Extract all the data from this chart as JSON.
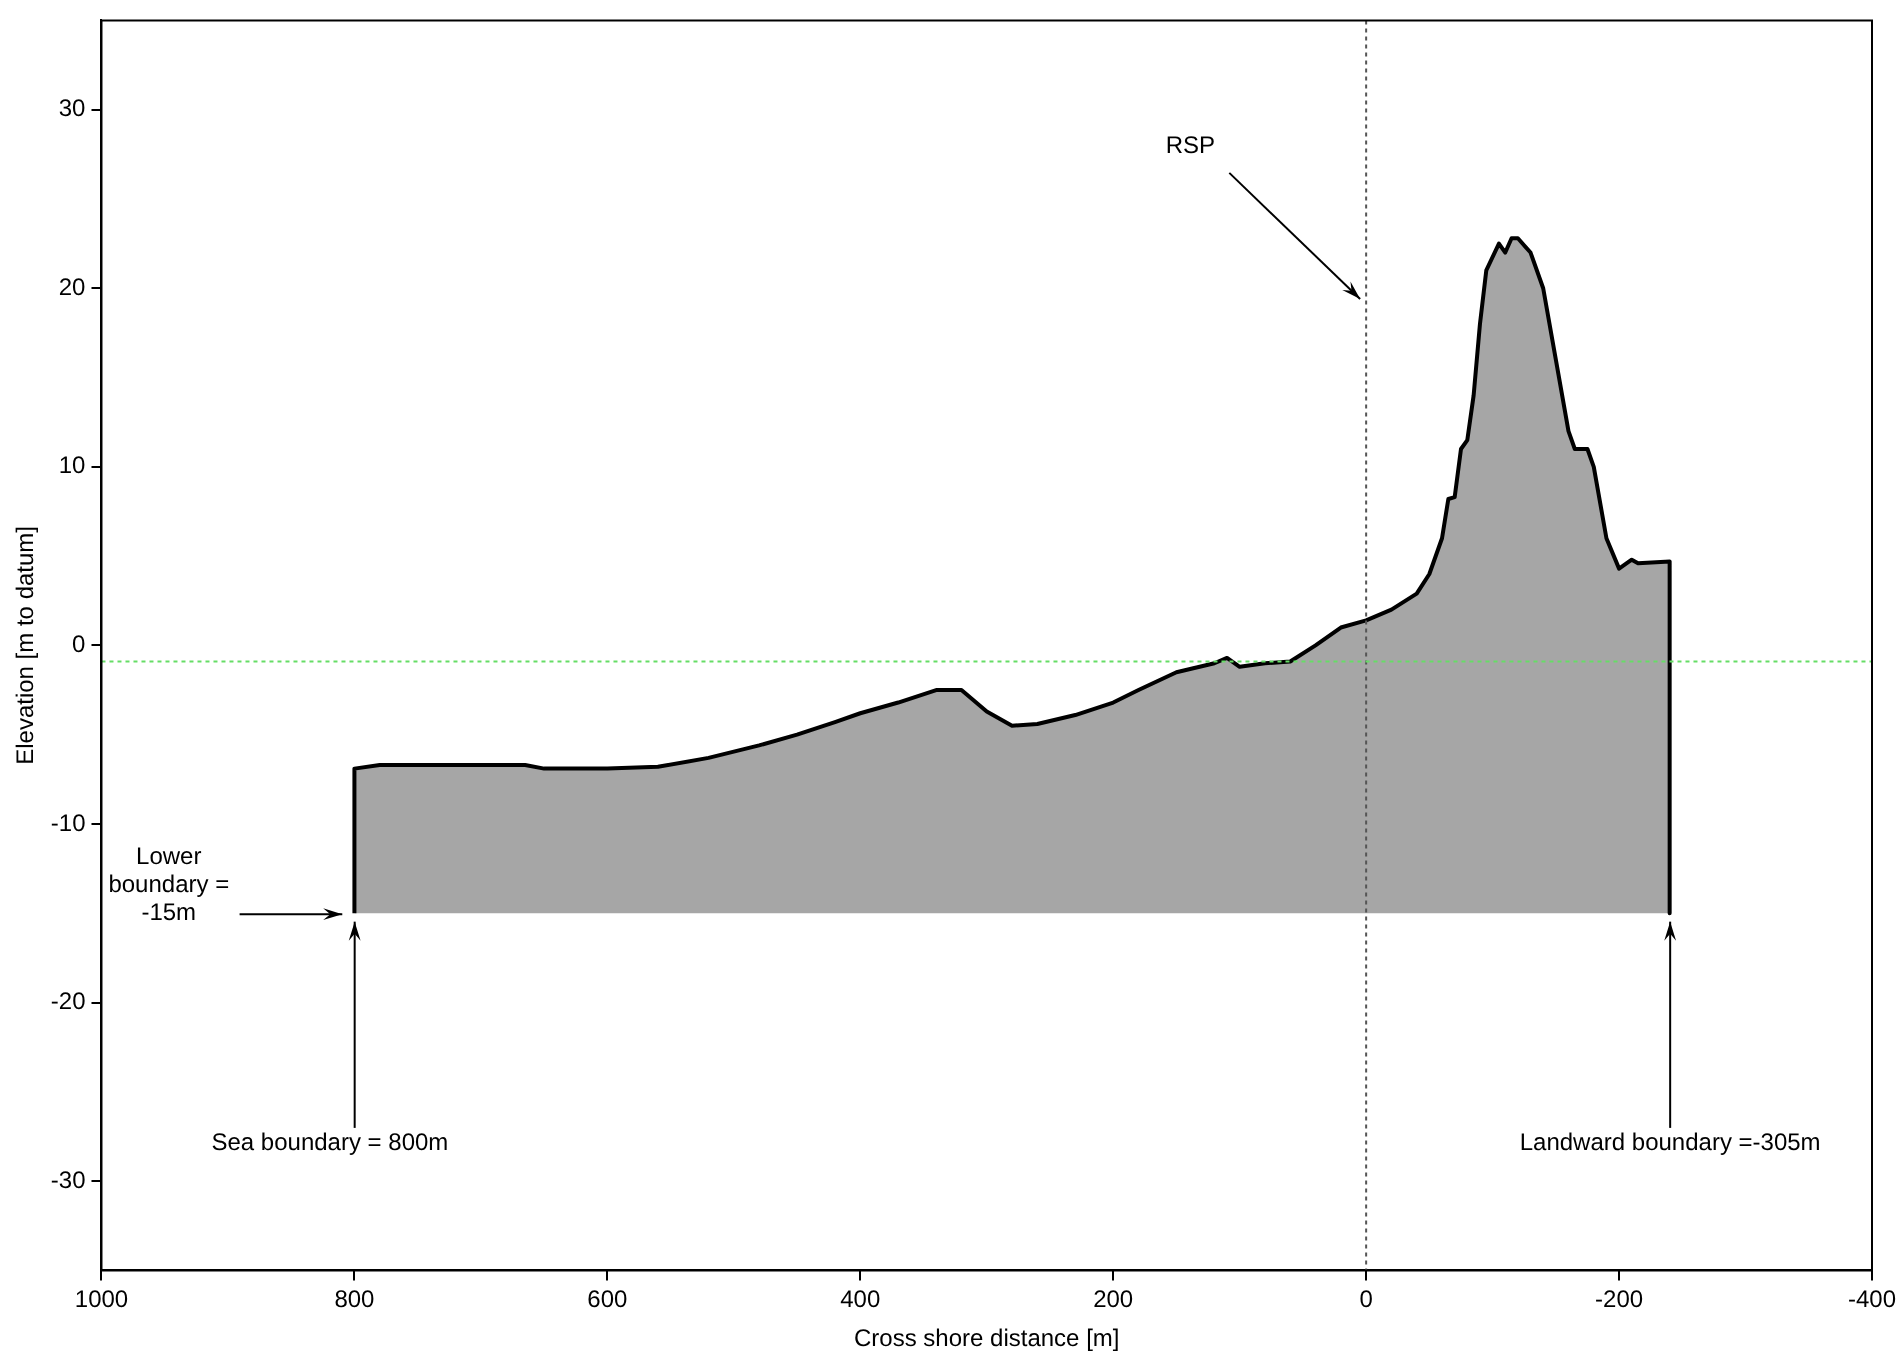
{
  "chart_data": {
    "type": "area",
    "xlabel": "Cross shore distance [m]",
    "ylabel": "Elevation [m to datum]",
    "xlim": [
      1000,
      -400
    ],
    "xticks": [
      1000,
      800,
      600,
      400,
      200,
      0,
      -200,
      -400
    ],
    "ylim": [
      -35,
      35
    ],
    "yticks": [
      -30,
      -20,
      -10,
      0,
      10,
      20,
      30
    ],
    "grid": false,
    "legend": false,
    "x": [
      800,
      800,
      780,
      750,
      700,
      665,
      650,
      600,
      560,
      520,
      480,
      450,
      420,
      400,
      370,
      340,
      320,
      300,
      280,
      260,
      230,
      200,
      180,
      150,
      120,
      110,
      100,
      80,
      60,
      40,
      20,
      0,
      -20,
      -40,
      -50,
      -60,
      -65,
      -70,
      -75,
      -80,
      -85,
      -90,
      -95,
      -105,
      -110,
      -115,
      -120,
      -130,
      -140,
      -150,
      -160,
      -165,
      -175,
      -180,
      -190,
      -200,
      -210,
      -215,
      -240,
      -240
    ],
    "series": [
      {
        "color": "#a6a6a6",
        "values": [
          -15,
          -6.9,
          -6.7,
          -6.7,
          -6.7,
          -6.7,
          -6.9,
          -6.9,
          -6.8,
          -6.3,
          -5.6,
          -5,
          -4.3,
          -3.8,
          -3.2,
          -2.5,
          -2.5,
          -3.7,
          -4.5,
          -4.4,
          -3.9,
          -3.2,
          -2.5,
          -1.5,
          -1,
          -0.7,
          -1.2,
          -1,
          -0.9,
          0,
          1,
          1.4,
          2,
          2.9,
          4,
          6,
          8.2,
          8.3,
          11,
          11.5,
          14,
          18,
          21,
          22.5,
          22,
          22.8,
          22.8,
          22,
          20,
          16,
          12,
          11,
          11,
          10,
          6,
          4.3,
          4.8,
          4.6,
          4.7,
          -15
        ]
      }
    ],
    "ref_lines": [
      {
        "axis": "x",
        "value": 0,
        "color": "#555555",
        "line_style": "dotted"
      },
      {
        "axis": "y",
        "value": -0.9,
        "color": "#66dd66",
        "line_style": "dotted"
      }
    ],
    "annotations": [
      {
        "text": "RSP",
        "x": 0,
        "y": 19.4
      },
      "Lower boundary = -15m",
      "Sea boundary = 800m",
      "Landward boundary =-305m"
    ]
  }
}
